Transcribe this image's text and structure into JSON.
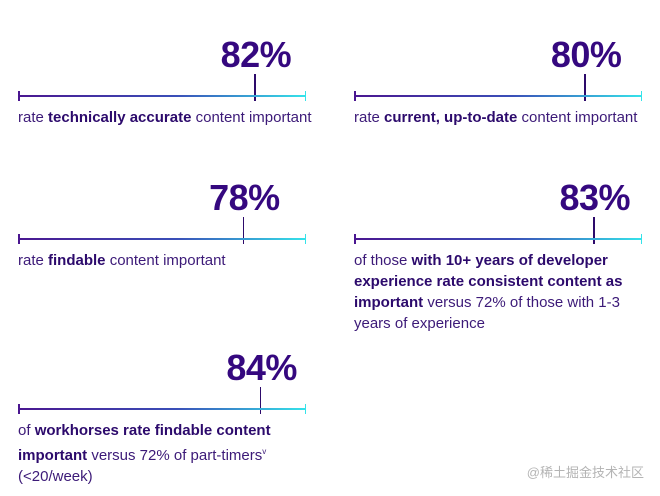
{
  "colors": {
    "number": "#35087f",
    "text": "#3c1a78",
    "scale_start": "#4a1690",
    "scale_end": "#35e3ea"
  },
  "stats": [
    {
      "value": 82,
      "label": "82%",
      "segments": [
        {
          "t": "rate "
        },
        {
          "t": "technically accurate",
          "b": true
        },
        {
          "t": " content important"
        }
      ]
    },
    {
      "value": 80,
      "label": "80%",
      "segments": [
        {
          "t": "rate "
        },
        {
          "t": "current, up-to-date",
          "b": true
        },
        {
          "t": " content important"
        }
      ]
    },
    {
      "value": 78,
      "label": "78%",
      "segments": [
        {
          "t": "rate "
        },
        {
          "t": "findable",
          "b": true
        },
        {
          "t": " content important"
        }
      ]
    },
    {
      "value": 83,
      "label": "83%",
      "segments": [
        {
          "t": "of those "
        },
        {
          "t": "with 10+ years of developer experience rate consistent content as important",
          "b": true
        },
        {
          "t": " versus 72% of those with 1-3 years of experience"
        }
      ]
    },
    {
      "value": 84,
      "label": "84%",
      "segments": [
        {
          "t": "of "
        },
        {
          "t": "workhorses rate findable content important",
          "b": true
        },
        {
          "t": " versus 72% of part-timers"
        },
        {
          "t": "v",
          "sup": true
        },
        {
          "t": " (<20/week)"
        }
      ]
    }
  ],
  "watermark": "@稀土掘金技术社区"
}
